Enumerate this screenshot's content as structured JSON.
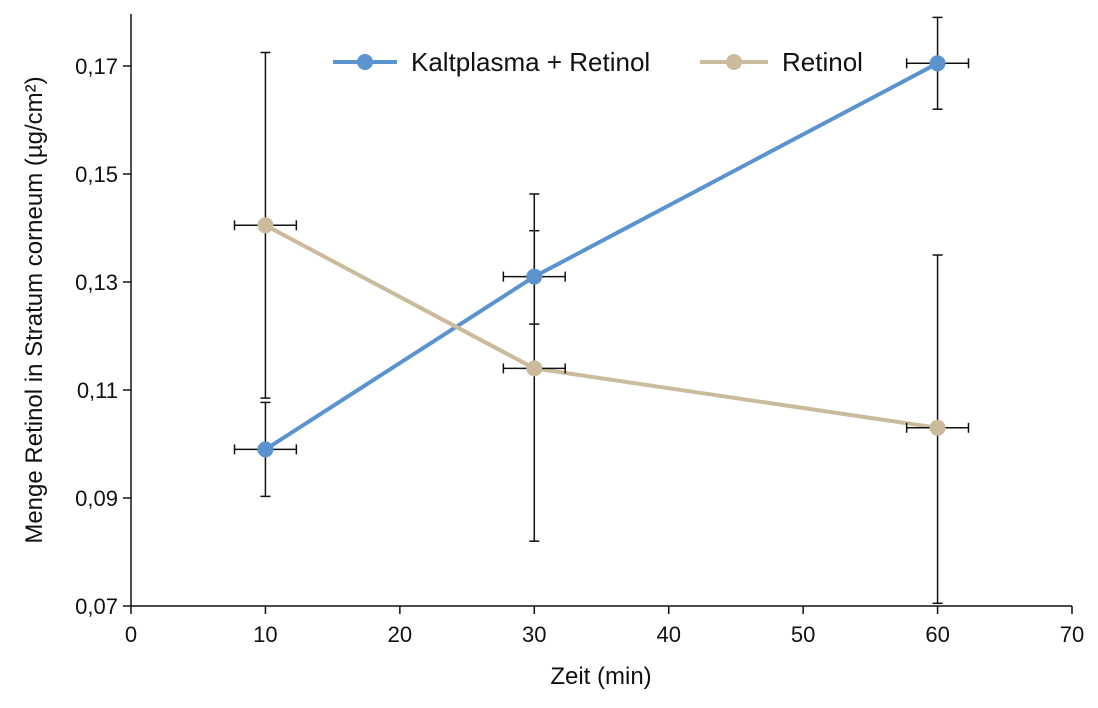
{
  "chart_data": {
    "type": "line",
    "title": "",
    "xlabel": "Zeit (min)",
    "ylabel": "Menge Retinol in Stratum corneum (µg/cm²)",
    "xlim": [
      0,
      70
    ],
    "ylim": [
      0.07,
      0.18
    ],
    "x_ticks": [
      0,
      10,
      20,
      30,
      40,
      50,
      60,
      70
    ],
    "x_tick_labels": [
      "0",
      "10",
      "20",
      "30",
      "40",
      "50",
      "60",
      "70"
    ],
    "y_ticks": [
      0.07,
      0.09,
      0.11,
      0.13,
      0.15,
      0.17
    ],
    "y_tick_labels": [
      "0,07",
      "0,09",
      "0,11",
      "0,13",
      "0,15",
      "0,17"
    ],
    "grid": false,
    "legend_position": "top",
    "series": [
      {
        "name": "Kaltplasma + Retinol",
        "color": "#5B93CF",
        "x": [
          10,
          30,
          60
        ],
        "y": [
          0.099,
          0.131,
          0.1705
        ],
        "y_err_low": [
          0.0903,
          0.1222,
          0.162
        ],
        "y_err_high": [
          0.1077,
          0.1395,
          0.179
        ],
        "x_err": [
          1.0,
          1.0,
          1.0
        ]
      },
      {
        "name": "Retinol",
        "color": "#C9BB9C",
        "x": [
          10,
          30,
          60
        ],
        "y": [
          0.1405,
          0.114,
          0.103
        ],
        "y_err_low": [
          0.1085,
          0.082,
          0.0705
        ],
        "y_err_high": [
          0.1725,
          0.1463,
          0.135
        ],
        "x_err": [
          1.0,
          1.0,
          1.0
        ]
      }
    ]
  }
}
